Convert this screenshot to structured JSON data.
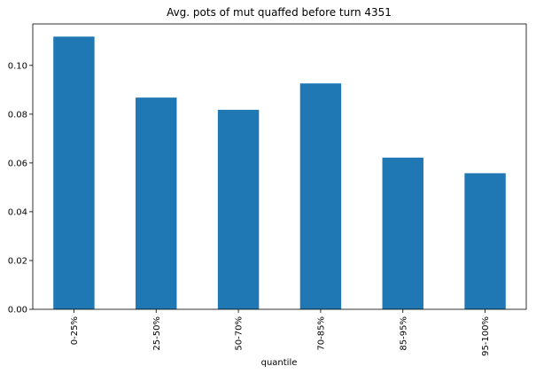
{
  "chart_data": {
    "type": "bar",
    "title": "Avg. pots of mut quaffed before turn 4351",
    "xlabel": "quantile",
    "ylabel": "",
    "categories": [
      "0-25%",
      "25-50%",
      "50-70%",
      "70-85%",
      "85-95%",
      "95-100%"
    ],
    "values": [
      0.1118,
      0.0868,
      0.0818,
      0.0926,
      0.0622,
      0.0558
    ],
    "ylim": [
      0,
      0.117
    ],
    "yticks": [
      0.0,
      0.02,
      0.04,
      0.06,
      0.08,
      0.1
    ],
    "ytick_labels": [
      "0.00",
      "0.02",
      "0.04",
      "0.06",
      "0.08",
      "0.10"
    ],
    "bar_color": "#1f77b4",
    "grid": false,
    "legend": "none"
  }
}
